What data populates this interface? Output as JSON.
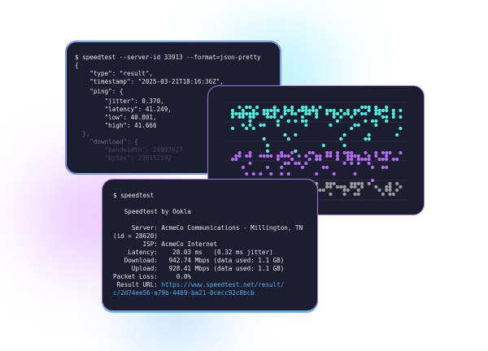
{
  "colors": {
    "card_bg": "#1c1d2f",
    "border": "#a974f0",
    "cyan": "#4ef0e0",
    "purple": "#b36bf2",
    "gray": "#9a9a9a",
    "link": "#4fb2f0"
  },
  "json_terminal": {
    "command": "$ speedtest --server-id 33913 --format=json-pretty",
    "lines": [
      "{",
      "    \"type\": \"result\",",
      "    \"timestamp\": \"2025-03-21T18:16:36Z\",",
      "    \"ping\": {",
      "        \"jitter\": 0.370,",
      "        \"latency\": 41.249,",
      "        \"low\": 40.801,",
      "        \"high\": 41.666",
      "  },",
      "    \"download\": {",
      "        \"bandwidth\": 24097927",
      "        \"bytes\": 239152592"
    ]
  },
  "cli_terminal": {
    "command": "$ speedtest",
    "title": "   Speedtest by Ookla",
    "lines": [
      "     Server: AcmeCo Communications - Millington, TN",
      "(id = 28620)",
      "        ISP: AcmeCo Internet",
      "    Latency:    28.03 ms   (0.32 ms jitter)",
      "   Download:   942.74 Mbps (data used: 1.1 GB)",
      "     Upload:   928.41 Mbps (data used: 1.1 GB)",
      "Packet Loss:     0.0%"
    ],
    "result_label": " Result URL: ",
    "result_url_1": "https://www.speedtest.net/result/",
    "result_url_2": "c/2d74ee56-a79b-4469-ba21-0cecc92c8bcb"
  }
}
